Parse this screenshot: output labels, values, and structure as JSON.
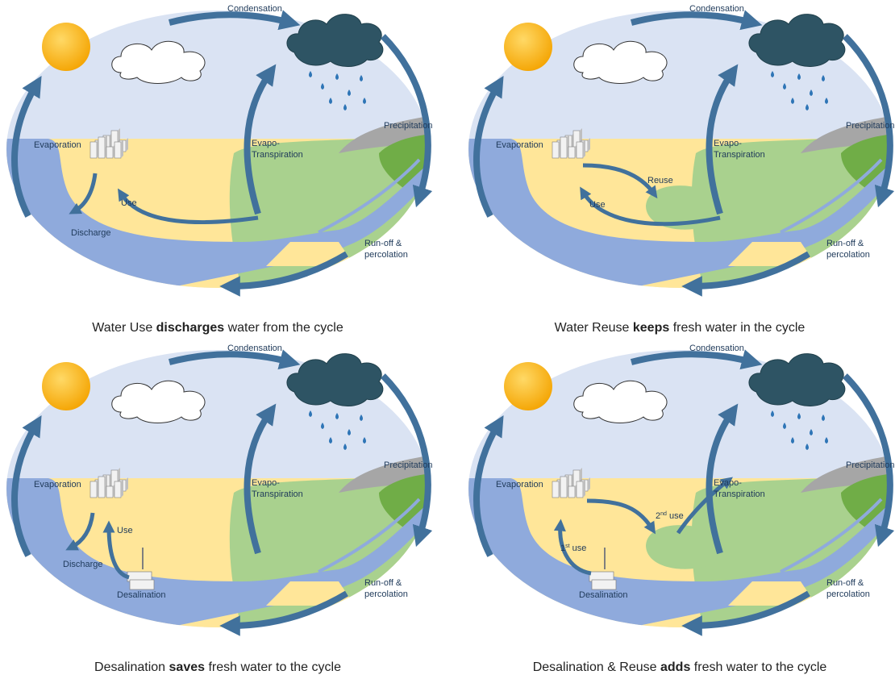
{
  "panels": [
    {
      "labels": {
        "condensation": "Condensation",
        "precipitation": "Precipitation",
        "evaporation": "Evaporation",
        "evapotranspiration": [
          "Evapo-",
          "Transpiration"
        ],
        "use": "Use",
        "discharge": "Discharge",
        "runoff": [
          "Run-off &",
          "percolation"
        ]
      },
      "caption": {
        "before": "Water Use ",
        "bold": "discharges",
        "after": " water from the cycle"
      }
    },
    {
      "labels": {
        "condensation": "Condensation",
        "precipitation": "Precipitation",
        "evaporation": "Evaporation",
        "evapotranspiration": [
          "Evapo-",
          "Transpiration"
        ],
        "reuse": "Reuse",
        "use": "Use",
        "runoff": [
          "Run-off &",
          "percolation"
        ]
      },
      "caption": {
        "before": "Water Reuse ",
        "bold": "keeps",
        "after": " fresh water in the cycle"
      }
    },
    {
      "labels": {
        "condensation": "Condensation",
        "precipitation": "Precipitation",
        "evaporation": "Evaporation",
        "evapotranspiration": [
          "Evapo-",
          "Transpiration"
        ],
        "use": "Use",
        "discharge": "Discharge",
        "desalination": "Desalination",
        "runoff": [
          "Run-off &",
          "percolation"
        ]
      },
      "caption": {
        "before": "Desalination ",
        "bold": "saves",
        "after": " fresh water to the cycle"
      }
    },
    {
      "labels": {
        "condensation": "Condensation",
        "precipitation": "Precipitation",
        "evaporation": "Evaporation",
        "evapotranspiration": [
          "Evapo-",
          "Transpiration"
        ],
        "first_use": {
          "base": "1",
          "sup": "st",
          "rest": " use"
        },
        "second_use": {
          "base": "2",
          "sup": "nd",
          "rest": " use"
        },
        "desalination": "Desalination",
        "runoff": [
          "Run-off &",
          "percolation"
        ]
      },
      "caption": {
        "before": "Desalination & Reuse ",
        "bold": "adds",
        "after": " fresh water to the cycle"
      }
    }
  ]
}
